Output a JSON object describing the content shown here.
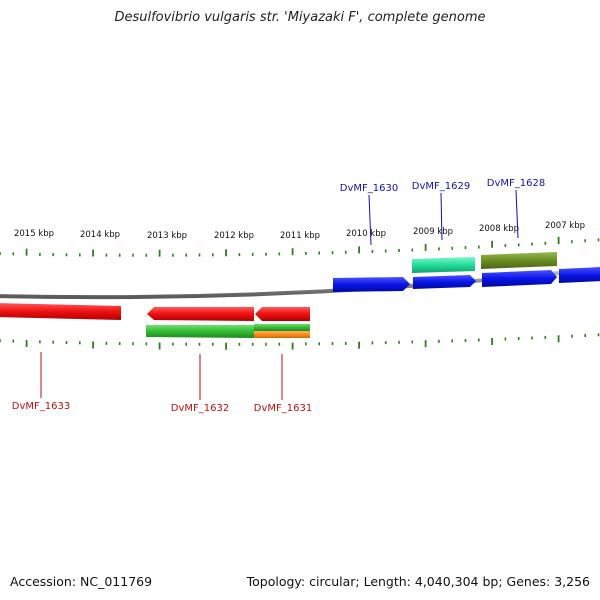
{
  "title": "Desulfovibrio vulgaris str. 'Miyazaki F', complete genome",
  "accession": "Accession: NC_011769",
  "summary": "Topology: circular; Length: 4,040,304 bp; Genes: 3,256",
  "colors": {
    "backbone": "#8f8f8f",
    "tick": "#2e7d1e",
    "forward_cds": "#0a14e6",
    "reverse_cds": "#ee1010",
    "forward_label": "#1010b0",
    "reverse_label": "#c01010",
    "green_feature": "#33bb33",
    "teal_feature": "#22dd99",
    "olive_feature": "#6b8e23",
    "orange_feature": "#ff8c1a"
  },
  "scale_labels": [
    "2015 kbp",
    "2014 kbp",
    "2013 kbp",
    "2012 kbp",
    "2011 kbp",
    "2010 kbp",
    "2009 kbp",
    "2008 kbp",
    "2007 kbp"
  ],
  "genes": [
    {
      "label": "DvMF_1633",
      "strand": "reverse"
    },
    {
      "label": "DvMF_1632",
      "strand": "reverse"
    },
    {
      "label": "DvMF_1631",
      "strand": "reverse"
    },
    {
      "label": "DvMF_1630",
      "strand": "forward"
    },
    {
      "label": "DvMF_1629",
      "strand": "forward"
    },
    {
      "label": "DvMF_1628",
      "strand": "forward"
    }
  ]
}
